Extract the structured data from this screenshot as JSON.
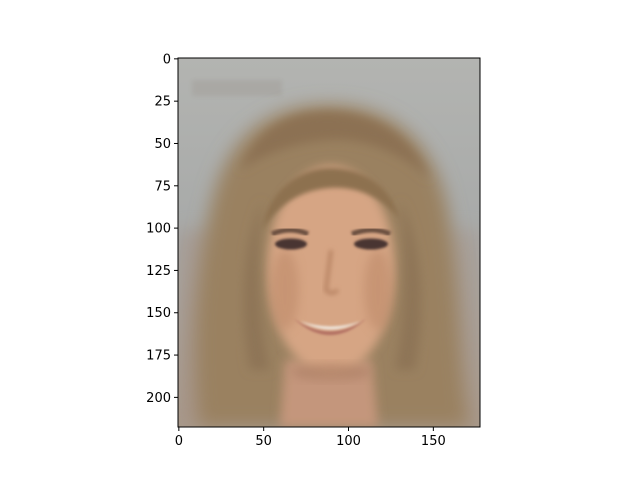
{
  "chart_data": {
    "type": "image",
    "title": "",
    "xlabel": "",
    "ylabel": "",
    "image": {
      "width": 178,
      "height": 218,
      "description": "blurred average face: woman with long light-brown hair, smiling, grey-blue background"
    },
    "x_axis": {
      "range": [
        -0.5,
        177.5
      ],
      "ticks": [
        0,
        50,
        100,
        150
      ],
      "tick_labels": [
        "0",
        "50",
        "100",
        "150"
      ]
    },
    "y_axis": {
      "range": [
        217.5,
        -0.5
      ],
      "inverted": true,
      "ticks": [
        0,
        25,
        50,
        75,
        100,
        125,
        150,
        175,
        200
      ],
      "tick_labels": [
        "0",
        "25",
        "50",
        "75",
        "100",
        "125",
        "150",
        "175",
        "200"
      ]
    },
    "grid": false,
    "legend": "none"
  },
  "colors": {
    "background": "#a9aaa8",
    "hair": "#9a8160",
    "hair_dark": "#7d6547",
    "skin": "#d6a584",
    "skin_shadow": "#b98565",
    "eyes": "#4a3531",
    "lips": "#b06d61",
    "teeth": "#efe7df",
    "neck": "#c4967b"
  }
}
